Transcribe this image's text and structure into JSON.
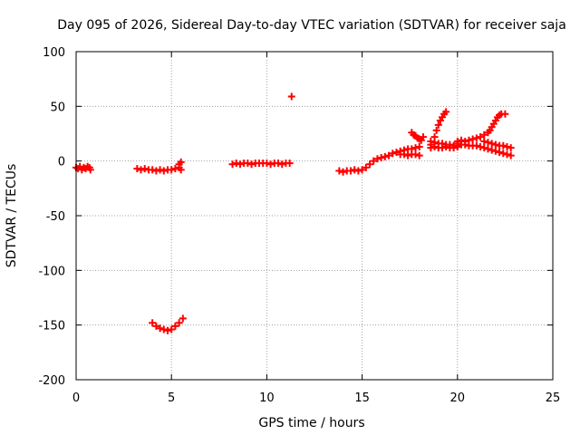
{
  "chart_data": {
    "type": "scatter",
    "title": "Day 095 of 2026, Sidereal Day-to-day VTEC variation (SDTVAR) for receiver saja",
    "xlabel": "GPS time / hours",
    "ylabel": "SDTVAR / TECUs",
    "xlim": [
      0,
      25
    ],
    "ylim": [
      -200,
      100
    ],
    "xticks": [
      "0",
      "5",
      "10",
      "15",
      "20",
      "25"
    ],
    "yticks": [
      "100",
      "50",
      "0",
      "-50",
      "-100",
      "-150",
      "-200"
    ],
    "grid": true,
    "marker": "+",
    "color": "#ff0000",
    "series": [
      {
        "points": [
          [
            0.0,
            -6
          ],
          [
            0.1,
            -7
          ],
          [
            0.2,
            -5
          ],
          [
            0.3,
            -8
          ],
          [
            0.4,
            -6
          ],
          [
            0.5,
            -7
          ],
          [
            0.6,
            -5
          ],
          [
            0.7,
            -6
          ],
          [
            0.75,
            -8
          ],
          [
            3.2,
            -7
          ],
          [
            3.4,
            -8
          ],
          [
            3.6,
            -7
          ],
          [
            3.8,
            -8
          ],
          [
            4.0,
            -8
          ],
          [
            4.2,
            -9
          ],
          [
            4.4,
            -8
          ],
          [
            4.6,
            -9
          ],
          [
            4.8,
            -8
          ],
          [
            5.0,
            -8
          ],
          [
            5.2,
            -7
          ],
          [
            5.4,
            -6
          ],
          [
            5.4,
            -3
          ],
          [
            5.5,
            -1
          ],
          [
            5.5,
            -8
          ],
          [
            4.0,
            -148
          ],
          [
            4.2,
            -151
          ],
          [
            4.4,
            -153
          ],
          [
            4.6,
            -154
          ],
          [
            4.8,
            -155
          ],
          [
            5.0,
            -154
          ],
          [
            5.2,
            -151
          ],
          [
            5.4,
            -148
          ],
          [
            5.6,
            -144
          ],
          [
            8.2,
            -3
          ],
          [
            8.4,
            -2
          ],
          [
            8.6,
            -3
          ],
          [
            8.8,
            -2
          ],
          [
            9.0,
            -2
          ],
          [
            9.2,
            -3
          ],
          [
            9.4,
            -2
          ],
          [
            9.6,
            -2
          ],
          [
            9.8,
            -2
          ],
          [
            10.0,
            -2
          ],
          [
            10.2,
            -3
          ],
          [
            10.4,
            -2
          ],
          [
            10.6,
            -2
          ],
          [
            10.8,
            -3
          ],
          [
            11.0,
            -2
          ],
          [
            11.2,
            -2
          ],
          [
            11.3,
            59
          ],
          [
            13.8,
            -9
          ],
          [
            14.0,
            -10
          ],
          [
            14.2,
            -9
          ],
          [
            14.4,
            -9
          ],
          [
            14.6,
            -8
          ],
          [
            14.8,
            -9
          ],
          [
            15.0,
            -8
          ],
          [
            15.2,
            -6
          ],
          [
            15.4,
            -3
          ],
          [
            15.6,
            0
          ],
          [
            15.8,
            2
          ],
          [
            16.0,
            3
          ],
          [
            16.2,
            4
          ],
          [
            16.4,
            5
          ],
          [
            16.6,
            7
          ],
          [
            16.8,
            8
          ],
          [
            17.0,
            9
          ],
          [
            17.2,
            10
          ],
          [
            17.4,
            11
          ],
          [
            17.6,
            11
          ],
          [
            17.8,
            12
          ],
          [
            18.0,
            13
          ],
          [
            17.0,
            6
          ],
          [
            17.2,
            6
          ],
          [
            17.4,
            5
          ],
          [
            17.6,
            6
          ],
          [
            17.8,
            6
          ],
          [
            18.0,
            5
          ],
          [
            17.6,
            26
          ],
          [
            17.7,
            24
          ],
          [
            17.8,
            23
          ],
          [
            17.9,
            21
          ],
          [
            18.0,
            20
          ],
          [
            18.1,
            19
          ],
          [
            18.2,
            22
          ],
          [
            18.6,
            15
          ],
          [
            18.8,
            22
          ],
          [
            18.9,
            28
          ],
          [
            19.0,
            33
          ],
          [
            19.1,
            37
          ],
          [
            19.2,
            40
          ],
          [
            19.3,
            43
          ],
          [
            19.4,
            45
          ],
          [
            18.6,
            18
          ],
          [
            18.8,
            17
          ],
          [
            19.0,
            16
          ],
          [
            19.2,
            16
          ],
          [
            19.4,
            15
          ],
          [
            19.6,
            15
          ],
          [
            19.8,
            14
          ],
          [
            20.0,
            14
          ],
          [
            18.6,
            12
          ],
          [
            18.8,
            13
          ],
          [
            19.0,
            12
          ],
          [
            19.2,
            12
          ],
          [
            19.4,
            13
          ],
          [
            19.6,
            12
          ],
          [
            19.8,
            12
          ],
          [
            20.0,
            13
          ],
          [
            20.0,
            18
          ],
          [
            20.2,
            19
          ],
          [
            20.4,
            18
          ],
          [
            20.6,
            19
          ],
          [
            20.8,
            20
          ],
          [
            21.0,
            21
          ],
          [
            21.2,
            22
          ],
          [
            21.4,
            24
          ],
          [
            21.6,
            26
          ],
          [
            21.7,
            28
          ],
          [
            21.8,
            31
          ],
          [
            21.9,
            34
          ],
          [
            22.0,
            37
          ],
          [
            22.1,
            40
          ],
          [
            22.2,
            42
          ],
          [
            22.3,
            43
          ],
          [
            22.5,
            43
          ],
          [
            20.0,
            16
          ],
          [
            20.2,
            15
          ],
          [
            20.4,
            15
          ],
          [
            20.6,
            14
          ],
          [
            20.8,
            14
          ],
          [
            21.0,
            14
          ],
          [
            21.2,
            13
          ],
          [
            21.4,
            12
          ],
          [
            21.6,
            11
          ],
          [
            21.8,
            10
          ],
          [
            22.0,
            9
          ],
          [
            22.2,
            8
          ],
          [
            22.4,
            7
          ],
          [
            22.6,
            6
          ],
          [
            22.8,
            5
          ],
          [
            21.4,
            18
          ],
          [
            21.6,
            17
          ],
          [
            21.8,
            16
          ],
          [
            22.0,
            15
          ],
          [
            22.2,
            14
          ],
          [
            22.4,
            14
          ],
          [
            22.6,
            13
          ],
          [
            22.8,
            12
          ]
        ]
      }
    ]
  }
}
